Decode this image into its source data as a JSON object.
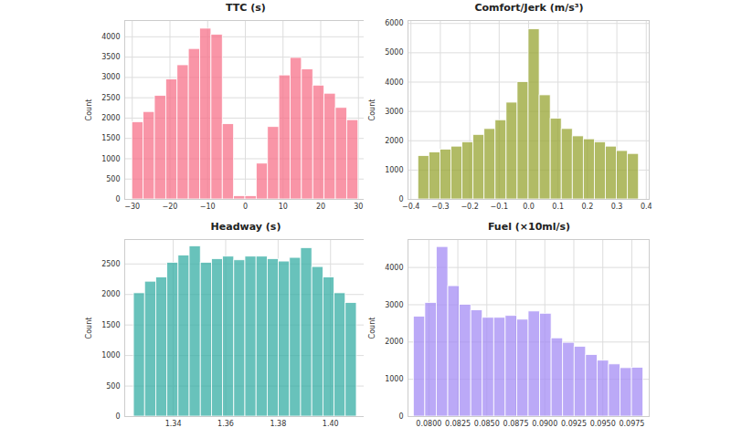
{
  "chart_data": [
    {
      "type": "histogram",
      "title": "TTC (s)",
      "y_label": "Count",
      "color": "#f77189",
      "grid": true,
      "bins": [
        -30,
        -27,
        -24,
        -21,
        -18,
        -15,
        -12,
        -9,
        -6,
        -3,
        0,
        3,
        6,
        9,
        12,
        15,
        18,
        21,
        24,
        27,
        30
      ],
      "counts": [
        1900,
        2150,
        2550,
        2950,
        3300,
        3700,
        4200,
        4050,
        1850,
        80,
        80,
        880,
        1780,
        3050,
        3480,
        3200,
        2800,
        2600,
        2250,
        1950
      ],
      "xlim": [
        -32,
        32
      ],
      "xticks": [
        {
          "value": -30,
          "label": "−30"
        },
        {
          "value": -20,
          "label": "−20"
        },
        {
          "value": -10,
          "label": "−10"
        },
        0,
        10,
        20,
        30
      ],
      "ylim": [
        0,
        4400
      ],
      "yticks": [
        0,
        500,
        1000,
        1500,
        2000,
        2500,
        3000,
        3500,
        4000
      ]
    },
    {
      "type": "histogram",
      "title": "Comfort/Jerk (m/s³)",
      "y_label": "Count",
      "color": "#97a431",
      "grid": true,
      "bins": [
        -0.375,
        -0.3375,
        -0.3,
        -0.2625,
        -0.225,
        -0.1875,
        -0.15,
        -0.1125,
        -0.075,
        -0.0375,
        0,
        0.0375,
        0.075,
        0.1125,
        0.15,
        0.1875,
        0.225,
        0.2625,
        0.3,
        0.3375,
        0.375
      ],
      "counts": [
        1480,
        1600,
        1700,
        1800,
        1950,
        2200,
        2400,
        2700,
        3300,
        4000,
        5800,
        3550,
        2750,
        2400,
        2150,
        2050,
        1950,
        1800,
        1650,
        1550
      ],
      "xlim": [
        -0.41,
        0.41
      ],
      "xticks": [
        {
          "value": -0.4,
          "label": "−0.4"
        },
        {
          "value": -0.3,
          "label": "−0.3"
        },
        {
          "value": -0.2,
          "label": "−0.2"
        },
        {
          "value": -0.1,
          "label": "−0.1"
        },
        {
          "value": 0,
          "label": "0.0"
        },
        0.1,
        0.2,
        0.3,
        0.4
      ],
      "ylim": [
        0,
        6100
      ],
      "yticks": [
        0,
        1000,
        2000,
        3000,
        4000,
        5000,
        6000
      ]
    },
    {
      "type": "histogram",
      "title": "Headway (s)",
      "y_label": "Count",
      "color": "#36ada4",
      "grid": true,
      "bins": [
        1.325,
        1.32925,
        1.3335,
        1.33775,
        1.342,
        1.34625,
        1.3505,
        1.35475,
        1.359,
        1.36325,
        1.3675,
        1.37175,
        1.376,
        1.38025,
        1.3845,
        1.38875,
        1.393,
        1.39725,
        1.4015,
        1.40575,
        1.41
      ],
      "counts": [
        2020,
        2210,
        2280,
        2520,
        2640,
        2790,
        2520,
        2580,
        2620,
        2560,
        2620,
        2620,
        2580,
        2540,
        2600,
        2760,
        2450,
        2280,
        2020,
        1860
      ],
      "xlim": [
        1.3215,
        1.4135
      ],
      "xticks": [
        1.34,
        1.36,
        1.38,
        {
          "value": 1.4,
          "label": "1.40"
        }
      ],
      "ylim": [
        0,
        2900
      ],
      "yticks": [
        0,
        500,
        1000,
        1500,
        2000,
        2500
      ]
    },
    {
      "type": "histogram",
      "title": "Fuel (×10ml/s)",
      "y_label": "Count",
      "color": "#a48cf4",
      "grid": true,
      "bins": [
        0.0787,
        0.07969,
        0.08068,
        0.08167,
        0.08266,
        0.08365,
        0.08464,
        0.08563,
        0.08662,
        0.08761,
        0.0886,
        0.08959,
        0.09058,
        0.09157,
        0.09256,
        0.09355,
        0.09454,
        0.09553,
        0.09652,
        0.09751,
        0.0985
      ],
      "counts": [
        2680,
        3050,
        4550,
        3500,
        3000,
        2850,
        2650,
        2650,
        2700,
        2600,
        2820,
        2760,
        2100,
        1980,
        1870,
        1650,
        1500,
        1400,
        1300,
        1310
      ],
      "xlim": [
        0.0782,
        0.099
      ],
      "xticks": [
        {
          "value": 0.08,
          "label": "0.0800"
        },
        {
          "value": 0.0825,
          "label": "0.0825"
        },
        {
          "value": 0.085,
          "label": "0.0850"
        },
        {
          "value": 0.0875,
          "label": "0.0875"
        },
        {
          "value": 0.09,
          "label": "0.0900"
        },
        {
          "value": 0.0925,
          "label": "0.0925"
        },
        {
          "value": 0.095,
          "label": "0.0950"
        },
        {
          "value": 0.0975,
          "label": "0.0975"
        }
      ],
      "ylim": [
        0,
        4750
      ],
      "yticks": [
        0,
        1000,
        2000,
        3000,
        4000
      ]
    }
  ]
}
